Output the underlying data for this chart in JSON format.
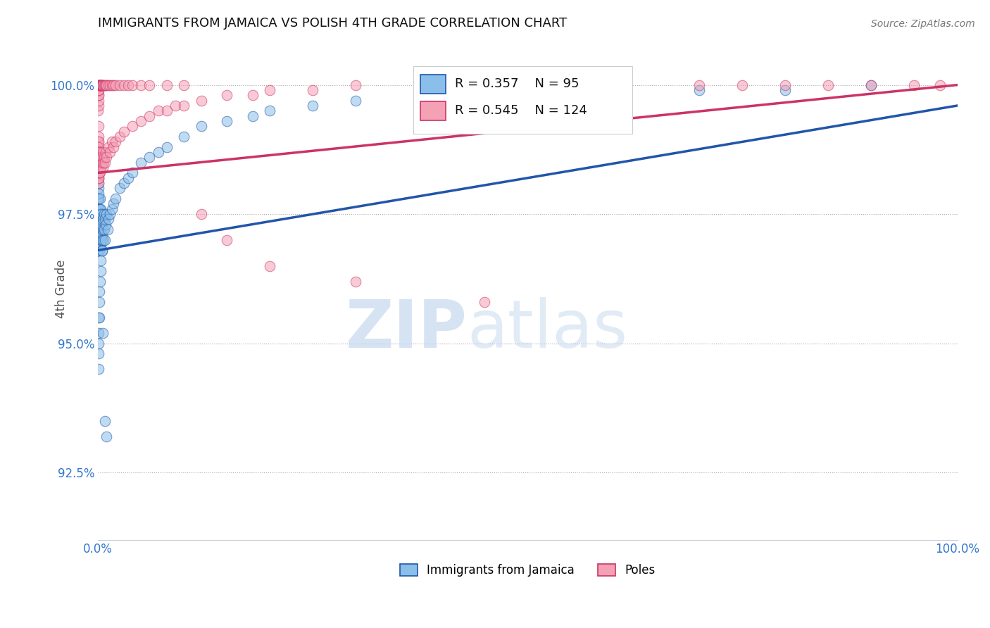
{
  "title": "IMMIGRANTS FROM JAMAICA VS POLISH 4TH GRADE CORRELATION CHART",
  "source": "Source: ZipAtlas.com",
  "ylabel": "4th Grade",
  "ytick_values": [
    92.5,
    95.0,
    97.5,
    100.0
  ],
  "xmin": 0.0,
  "xmax": 100.0,
  "ymin": 91.2,
  "ymax": 100.9,
  "legend1_label": "Immigrants from Jamaica",
  "legend2_label": "Poles",
  "r1": 0.357,
  "n1": 95,
  "r2": 0.545,
  "n2": 124,
  "color_blue": "#89bfe8",
  "color_pink": "#f4a0b5",
  "trendline_blue": "#2255aa",
  "trendline_pink": "#cc3366",
  "watermark_zip_color": "#c5d8ef",
  "watermark_atlas_color": "#c5d8ef",
  "blue_points_x": [
    0.05,
    0.05,
    0.05,
    0.05,
    0.07,
    0.07,
    0.07,
    0.08,
    0.08,
    0.08,
    0.1,
    0.1,
    0.1,
    0.1,
    0.1,
    0.12,
    0.12,
    0.13,
    0.13,
    0.15,
    0.15,
    0.15,
    0.18,
    0.18,
    0.2,
    0.2,
    0.2,
    0.22,
    0.22,
    0.25,
    0.25,
    0.28,
    0.28,
    0.3,
    0.3,
    0.32,
    0.35,
    0.35,
    0.38,
    0.4,
    0.42,
    0.45,
    0.48,
    0.5,
    0.55,
    0.6,
    0.65,
    0.7,
    0.75,
    0.8,
    0.85,
    0.9,
    1.0,
    1.1,
    1.2,
    1.4,
    1.6,
    1.8,
    2.0,
    2.5,
    3.0,
    3.5,
    4.0,
    5.0,
    6.0,
    7.0,
    8.0,
    10.0,
    12.0,
    15.0,
    18.0,
    20.0,
    25.0,
    30.0,
    40.0,
    50.0,
    60.0,
    70.0,
    80.0,
    90.0,
    0.05,
    0.05,
    0.06,
    0.08,
    0.1,
    0.12,
    0.15,
    0.18,
    0.22,
    0.28,
    0.35,
    0.45,
    0.6,
    0.8,
    1.0
  ],
  "blue_points_y": [
    97.2,
    97.5,
    97.8,
    98.0,
    97.0,
    97.4,
    97.8,
    97.2,
    97.6,
    98.1,
    96.8,
    97.1,
    97.5,
    97.9,
    98.3,
    97.0,
    97.4,
    96.8,
    97.3,
    97.0,
    97.3,
    97.6,
    96.9,
    97.5,
    97.1,
    97.4,
    97.8,
    97.0,
    97.5,
    97.2,
    97.6,
    97.0,
    97.4,
    97.1,
    97.5,
    96.9,
    97.2,
    97.6,
    97.0,
    97.3,
    97.5,
    97.1,
    96.8,
    97.0,
    97.2,
    97.4,
    97.0,
    97.5,
    97.2,
    97.4,
    97.0,
    97.3,
    97.5,
    97.2,
    97.4,
    97.5,
    97.6,
    97.7,
    97.8,
    98.0,
    98.1,
    98.2,
    98.3,
    98.5,
    98.6,
    98.7,
    98.8,
    99.0,
    99.2,
    99.3,
    99.4,
    99.5,
    99.6,
    99.7,
    99.8,
    99.8,
    99.9,
    99.9,
    99.9,
    100.0,
    95.5,
    94.8,
    95.0,
    95.2,
    94.5,
    95.8,
    95.5,
    96.0,
    96.2,
    96.4,
    96.6,
    96.8,
    95.2,
    93.5,
    93.2
  ],
  "pink_points_x": [
    0.02,
    0.03,
    0.04,
    0.04,
    0.05,
    0.05,
    0.05,
    0.05,
    0.06,
    0.06,
    0.07,
    0.07,
    0.07,
    0.08,
    0.08,
    0.09,
    0.09,
    0.1,
    0.1,
    0.1,
    0.11,
    0.11,
    0.12,
    0.12,
    0.13,
    0.14,
    0.15,
    0.16,
    0.18,
    0.2,
    0.2,
    0.22,
    0.24,
    0.26,
    0.28,
    0.3,
    0.32,
    0.35,
    0.38,
    0.4,
    0.45,
    0.5,
    0.55,
    0.6,
    0.65,
    0.7,
    0.8,
    0.9,
    1.0,
    1.2,
    1.4,
    1.6,
    1.8,
    2.0,
    2.5,
    3.0,
    4.0,
    5.0,
    6.0,
    7.0,
    8.0,
    9.0,
    10.0,
    12.0,
    15.0,
    18.0,
    20.0,
    25.0,
    30.0,
    40.0,
    50.0,
    60.0,
    70.0,
    75.0,
    80.0,
    85.0,
    90.0,
    95.0,
    98.0,
    0.03,
    0.04,
    0.05,
    0.06,
    0.07,
    0.08,
    0.09,
    0.1,
    0.12,
    0.14,
    0.16,
    0.18,
    0.2,
    0.22,
    0.25,
    0.28,
    0.32,
    0.36,
    0.4,
    0.45,
    0.5,
    0.55,
    0.6,
    0.7,
    0.8,
    0.9,
    1.0,
    1.2,
    1.4,
    1.6,
    1.8,
    2.0,
    2.5,
    3.0,
    3.5,
    4.0,
    5.0,
    6.0,
    8.0,
    10.0,
    12.0,
    15.0,
    20.0,
    30.0,
    45.0
  ],
  "pink_points_y": [
    98.8,
    98.5,
    98.9,
    99.0,
    98.3,
    98.6,
    98.9,
    99.2,
    98.4,
    98.7,
    98.2,
    98.5,
    98.8,
    98.3,
    98.6,
    98.2,
    98.5,
    98.1,
    98.4,
    98.7,
    98.2,
    98.5,
    98.3,
    98.6,
    98.4,
    98.3,
    98.5,
    98.4,
    98.6,
    98.3,
    98.6,
    98.4,
    98.5,
    98.7,
    98.4,
    98.5,
    98.6,
    98.4,
    98.5,
    98.6,
    98.5,
    98.6,
    98.4,
    98.7,
    98.5,
    98.6,
    98.5,
    98.7,
    98.6,
    98.8,
    98.7,
    98.9,
    98.8,
    98.9,
    99.0,
    99.1,
    99.2,
    99.3,
    99.4,
    99.5,
    99.5,
    99.6,
    99.6,
    99.7,
    99.8,
    99.8,
    99.9,
    99.9,
    100.0,
    100.0,
    100.0,
    100.0,
    100.0,
    100.0,
    100.0,
    100.0,
    100.0,
    100.0,
    100.0,
    99.5,
    99.6,
    99.7,
    99.8,
    99.8,
    99.9,
    99.9,
    100.0,
    100.0,
    100.0,
    100.0,
    100.0,
    100.0,
    100.0,
    100.0,
    100.0,
    100.0,
    100.0,
    100.0,
    100.0,
    100.0,
    100.0,
    100.0,
    100.0,
    100.0,
    100.0,
    100.0,
    100.0,
    100.0,
    100.0,
    100.0,
    100.0,
    100.0,
    100.0,
    100.0,
    100.0,
    100.0,
    100.0,
    100.0,
    100.0,
    97.5,
    97.0,
    96.5,
    96.2,
    95.8
  ],
  "trendline_blue_x0": 0.0,
  "trendline_blue_y0": 96.8,
  "trendline_blue_x1": 100.0,
  "trendline_blue_y1": 99.6,
  "trendline_pink_x0": 0.0,
  "trendline_pink_y0": 98.3,
  "trendline_pink_x1": 100.0,
  "trendline_pink_y1": 100.0
}
